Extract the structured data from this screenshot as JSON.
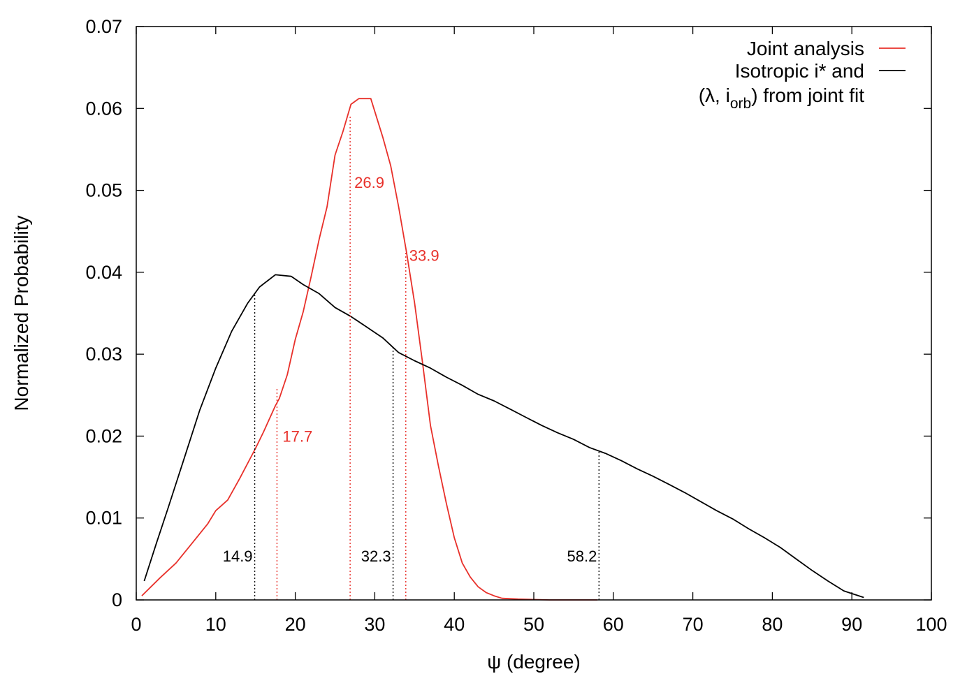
{
  "chart_data": {
    "type": "line",
    "xlabel": "ψ (degree)",
    "ylabel": "Normalized Probability",
    "xlim": [
      0,
      100
    ],
    "ylim": [
      0,
      0.07
    ],
    "x_ticks": [
      0,
      10,
      20,
      30,
      40,
      50,
      60,
      70,
      80,
      90,
      100
    ],
    "y_ticks": [
      0,
      0.01,
      0.02,
      0.03,
      0.04,
      0.05,
      0.06,
      0.07
    ],
    "x_tick_labels": [
      "0",
      "10",
      "20",
      "30",
      "40",
      "50",
      "60",
      "70",
      "80",
      "90",
      "100"
    ],
    "y_tick_labels": [
      "0",
      "0.01",
      "0.02",
      "0.03",
      "0.04",
      "0.05",
      "0.06",
      "0.07"
    ],
    "grid": false,
    "legend_position": "top-right",
    "legend_lines": [
      "Joint analysis",
      "Isotropic i* and",
      "(λ, i",
      "orb",
      ") from joint fit"
    ],
    "series": [
      {
        "name": "Joint analysis",
        "color": "#e8302a",
        "points": [
          [
            0.7,
            0.0005
          ],
          [
            3,
            0.0027
          ],
          [
            5,
            0.0045
          ],
          [
            7,
            0.0069
          ],
          [
            9,
            0.0093
          ],
          [
            10,
            0.0109
          ],
          [
            11.5,
            0.0122
          ],
          [
            13,
            0.0148
          ],
          [
            15,
            0.0185
          ],
          [
            16,
            0.0205
          ],
          [
            17.5,
            0.0237
          ],
          [
            18,
            0.0246
          ],
          [
            19,
            0.0275
          ],
          [
            20,
            0.0318
          ],
          [
            21,
            0.0352
          ],
          [
            22,
            0.0395
          ],
          [
            23,
            0.044
          ],
          [
            24,
            0.048
          ],
          [
            25,
            0.0543
          ],
          [
            26,
            0.0572
          ],
          [
            27,
            0.0605
          ],
          [
            28,
            0.0612
          ],
          [
            29.5,
            0.0612
          ],
          [
            31,
            0.0565
          ],
          [
            32,
            0.053
          ],
          [
            33,
            0.048
          ],
          [
            34,
            0.0424
          ],
          [
            35,
            0.0363
          ],
          [
            36,
            0.029
          ],
          [
            37,
            0.0213
          ],
          [
            38,
            0.0164
          ],
          [
            39,
            0.0118
          ],
          [
            40,
            0.0076
          ],
          [
            41,
            0.0045
          ],
          [
            42,
            0.0028
          ],
          [
            43,
            0.0016
          ],
          [
            44,
            0.0009
          ],
          [
            45,
            0.0005
          ],
          [
            46,
            0.0002
          ],
          [
            48,
            0.0001
          ],
          [
            52,
            0.0
          ],
          [
            58,
            0.0
          ]
        ]
      },
      {
        "name": "Isotropic i* and (λ, iorb) from joint fit",
        "color": "#000000",
        "points": [
          [
            1,
            0.0023
          ],
          [
            2.5,
            0.0068
          ],
          [
            4,
            0.0112
          ],
          [
            6,
            0.0172
          ],
          [
            8,
            0.0232
          ],
          [
            10,
            0.0283
          ],
          [
            12,
            0.0328
          ],
          [
            14,
            0.0362
          ],
          [
            15.5,
            0.0382
          ],
          [
            17.5,
            0.0397
          ],
          [
            19.5,
            0.0395
          ],
          [
            21,
            0.0385
          ],
          [
            23,
            0.0374
          ],
          [
            25,
            0.0357
          ],
          [
            27,
            0.0346
          ],
          [
            29,
            0.0333
          ],
          [
            31,
            0.032
          ],
          [
            33,
            0.0302
          ],
          [
            35,
            0.0292
          ],
          [
            37,
            0.0283
          ],
          [
            39,
            0.0272
          ],
          [
            41,
            0.0262
          ],
          [
            43,
            0.0251
          ],
          [
            45,
            0.0243
          ],
          [
            47,
            0.0233
          ],
          [
            49,
            0.0223
          ],
          [
            51,
            0.0213
          ],
          [
            53,
            0.0204
          ],
          [
            55,
            0.0196
          ],
          [
            57,
            0.0186
          ],
          [
            59,
            0.0179
          ],
          [
            61,
            0.017
          ],
          [
            63,
            0.016
          ],
          [
            65,
            0.0151
          ],
          [
            67,
            0.0141
          ],
          [
            69,
            0.0131
          ],
          [
            71,
            0.012
          ],
          [
            73,
            0.0109
          ],
          [
            75,
            0.0099
          ],
          [
            77,
            0.0087
          ],
          [
            79,
            0.0076
          ],
          [
            81,
            0.0064
          ],
          [
            83,
            0.005
          ],
          [
            85,
            0.0036
          ],
          [
            87,
            0.0023
          ],
          [
            89,
            0.0011
          ],
          [
            91.5,
            0.0003
          ]
        ]
      }
    ],
    "markers": [
      {
        "x": 14.9,
        "y": 0.0375,
        "label": "14.9",
        "color": "#000000",
        "label_pos": "left-bottom"
      },
      {
        "x": 32.3,
        "y": 0.0309,
        "label": "32.3",
        "color": "#000000",
        "label_pos": "left-bottom"
      },
      {
        "x": 58.2,
        "y": 0.0182,
        "label": "58.2",
        "color": "#000000",
        "label_pos": "left-bottom"
      },
      {
        "x": 17.7,
        "y": 0.0258,
        "label": "17.7",
        "color": "#e8302a",
        "label_pos": "right-mid"
      },
      {
        "x": 26.9,
        "y": 0.059,
        "label": "26.9",
        "color": "#e8302a",
        "label_pos": "right-top"
      },
      {
        "x": 33.9,
        "y": 0.0425,
        "label": "33.9",
        "color": "#e8302a",
        "label_pos": "right-upper"
      }
    ]
  }
}
